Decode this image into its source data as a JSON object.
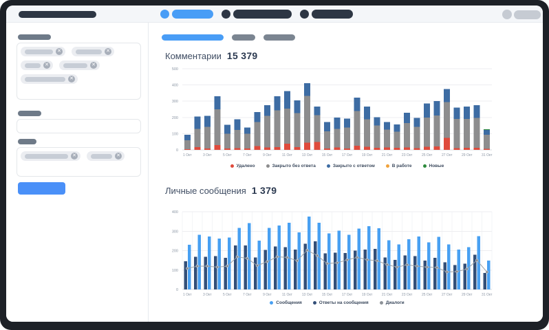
{
  "colors": {
    "frame": "#1d2127",
    "topbar_bg": "#f4f6f9",
    "accent_blue": "#499df6",
    "dark_pill": "#2d3644",
    "gray_pill": "#7b8591",
    "muted_pill": "#c6cbd3",
    "grid": "#ededf0",
    "axis_text": "#8a95a3"
  },
  "main": {
    "charts": [
      {
        "title": "Комментарии",
        "value": "15 379"
      },
      {
        "title": "Личные сообщения",
        "value": "1 379"
      }
    ]
  },
  "chart_data": [
    {
      "type": "bar",
      "stacked": true,
      "title": "Комментарии",
      "total_label": "15 379",
      "categories": [
        "1 Окт",
        "2 Окт",
        "3 Окт",
        "4 Окт",
        "5 Окт",
        "6 Окт",
        "7 Окт",
        "8 Окт",
        "9 Окт",
        "10 Окт",
        "11 Окт",
        "12 Окт",
        "13 Окт",
        "14 Окт",
        "15 Окт",
        "16 Окт",
        "17 Окт",
        "18 Окт",
        "19 Окт",
        "20 Окт",
        "21 Окт",
        "22 Окт",
        "23 Окт",
        "24 Окт",
        "25 Окт",
        "26 Окт",
        "27 Окт",
        "28 Окт",
        "29 Окт",
        "30 Окт",
        "31 Окт"
      ],
      "tick_every": 2,
      "ylim": [
        0,
        500
      ],
      "ytick_step": 100,
      "grid": true,
      "legend_position": "bottom",
      "series": [
        {
          "name": "Удалено",
          "color": "#df4b3c",
          "values": [
            5,
            18,
            8,
            30,
            8,
            10,
            8,
            24,
            14,
            18,
            38,
            16,
            45,
            48,
            8,
            14,
            8,
            25,
            20,
            12,
            14,
            12,
            14,
            10,
            20,
            22,
            75,
            10,
            12,
            12,
            6
          ]
        },
        {
          "name": "Закрыто без ответа",
          "color": "#8d8d8e",
          "values": [
            55,
            112,
            135,
            220,
            92,
            112,
            92,
            148,
            196,
            226,
            216,
            210,
            288,
            165,
            106,
            116,
            130,
            214,
            168,
            138,
            110,
            100,
            152,
            132,
            180,
            190,
            220,
            180,
            178,
            186,
            88
          ]
        },
        {
          "name": "Закрыто с ответом",
          "color": "#3d6ca3",
          "values": [
            33,
            75,
            67,
            80,
            55,
            66,
            38,
            62,
            65,
            86,
            108,
            79,
            77,
            55,
            58,
            70,
            54,
            82,
            80,
            51,
            47,
            45,
            62,
            55,
            87,
            88,
            79,
            71,
            78,
            78,
            28
          ]
        },
        {
          "name": "В работе",
          "color": "#f0a23b",
          "values": [
            0,
            0,
            0,
            0,
            0,
            0,
            0,
            0,
            0,
            0,
            0,
            0,
            0,
            0,
            0,
            0,
            0,
            0,
            0,
            0,
            0,
            0,
            0,
            0,
            0,
            0,
            0,
            0,
            0,
            0,
            0
          ]
        },
        {
          "name": "Новые",
          "color": "#2e8b3d",
          "values": [
            0,
            0,
            0,
            0,
            0,
            0,
            0,
            0,
            0,
            0,
            0,
            0,
            0,
            0,
            0,
            0,
            0,
            0,
            0,
            0,
            0,
            0,
            0,
            0,
            0,
            0,
            0,
            0,
            0,
            0,
            6
          ]
        }
      ],
      "legend": [
        {
          "label": "Удалено",
          "color": "#df4b3c"
        },
        {
          "label": "Закрыто без ответа",
          "color": "#8d8d8e"
        },
        {
          "label": "Закрыто с ответом",
          "color": "#3d6ca3"
        },
        {
          "label": "В работе",
          "color": "#f0a23b"
        },
        {
          "label": "Новые",
          "color": "#2e8b3d"
        }
      ]
    },
    {
      "type": "bar",
      "grouped": true,
      "has_line": true,
      "title": "Личные сообщения",
      "total_label": "1 379",
      "categories": [
        "1 Окт",
        "2 Окт",
        "3 Окт",
        "4 Окт",
        "5 Окт",
        "6 Окт",
        "7 Окт",
        "8 Окт",
        "9 Окт",
        "10 Окт",
        "11 Окт",
        "12 Окт",
        "13 Окт",
        "14 Окт",
        "15 Окт",
        "16 Окт",
        "17 Окт",
        "18 Окт",
        "19 Окт",
        "20 Окт",
        "21 Окт",
        "22 Окт",
        "23 Окт",
        "24 Окт",
        "25 Окт",
        "26 Окт",
        "27 Окт",
        "28 Окт",
        "29 Окт",
        "30 Окт",
        "31 Окт"
      ],
      "tick_every": 2,
      "ylim": [
        0,
        400
      ],
      "ytick_step": 100,
      "grid": true,
      "legend_position": "bottom",
      "series": [
        {
          "name": "Ответы на сообщения",
          "kind": "bar",
          "color": "#334f78",
          "values": [
            145,
            168,
            168,
            172,
            163,
            227,
            226,
            165,
            203,
            222,
            218,
            206,
            235,
            248,
            185,
            190,
            188,
            200,
            205,
            208,
            165,
            152,
            175,
            172,
            148,
            163,
            140,
            125,
            132,
            178,
            85
          ]
        },
        {
          "name": "Сообщения",
          "kind": "bar",
          "color": "#48a0f2",
          "values": [
            230,
            282,
            272,
            262,
            268,
            317,
            342,
            252,
            317,
            330,
            343,
            293,
            375,
            343,
            288,
            303,
            282,
            313,
            325,
            315,
            253,
            232,
            258,
            272,
            243,
            270,
            232,
            205,
            218,
            275,
            148
          ]
        },
        {
          "name": "Диалоги",
          "kind": "line",
          "color": "#9ba0a5",
          "values": [
            108,
            120,
            120,
            115,
            120,
            168,
            160,
            123,
            143,
            168,
            165,
            148,
            202,
            175,
            133,
            137,
            152,
            165,
            153,
            148,
            128,
            115,
            127,
            120,
            115,
            113,
            90,
            92,
            105,
            150,
            90
          ]
        }
      ],
      "legend": [
        {
          "label": "Сообщения",
          "color": "#48a0f2"
        },
        {
          "label": "Ответы на сообщения",
          "color": "#334f78"
        },
        {
          "label": "Диалоги",
          "color": "#8d9298"
        }
      ]
    }
  ]
}
